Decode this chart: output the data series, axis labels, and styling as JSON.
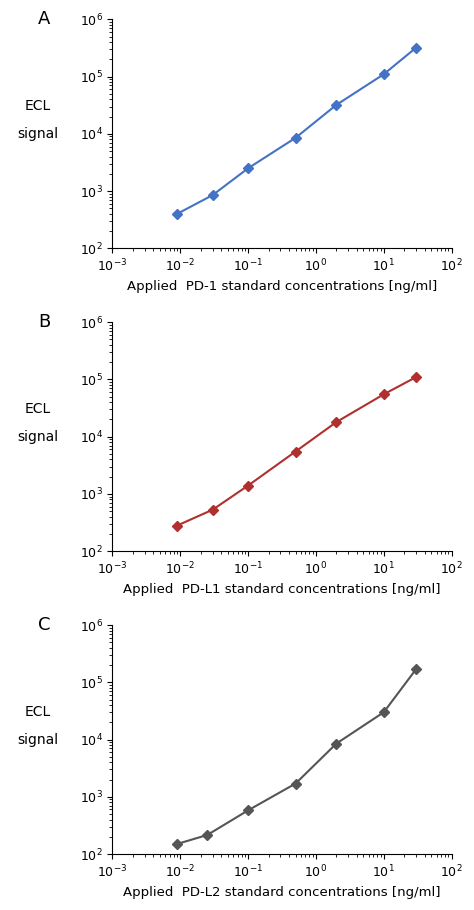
{
  "panels": [
    {
      "label": "A",
      "xlabel": "Applied  PD-1 standard concentrations [ng/ml]",
      "color": "#4472C4",
      "x": [
        0.009,
        0.03,
        0.1,
        0.5,
        2.0,
        10.0,
        30.0
      ],
      "y": [
        400,
        850,
        2500,
        8500,
        32000,
        110000,
        320000
      ]
    },
    {
      "label": "B",
      "xlabel": "Applied  PD-L1 standard concentrations [ng/ml]",
      "color": "#B03030",
      "x": [
        0.009,
        0.03,
        0.1,
        0.5,
        2.0,
        10.0,
        30.0
      ],
      "y": [
        280,
        530,
        1400,
        5500,
        18000,
        55000,
        110000
      ]
    },
    {
      "label": "C",
      "xlabel": "Applied  PD-L2 standard concentrations [ng/ml]",
      "color": "#555555",
      "x": [
        0.009,
        0.025,
        0.1,
        0.5,
        2.0,
        10.0,
        30.0
      ],
      "y": [
        150,
        215,
        580,
        1700,
        8500,
        30000,
        170000
      ]
    }
  ],
  "ylabel_line1": "ECL",
  "ylabel_line2": "signal",
  "xlim": [
    0.001,
    100.0
  ],
  "ylim": [
    100.0,
    1000000.0
  ],
  "background_color": "#ffffff",
  "marker": "D",
  "markersize": 5,
  "linewidth": 1.5
}
